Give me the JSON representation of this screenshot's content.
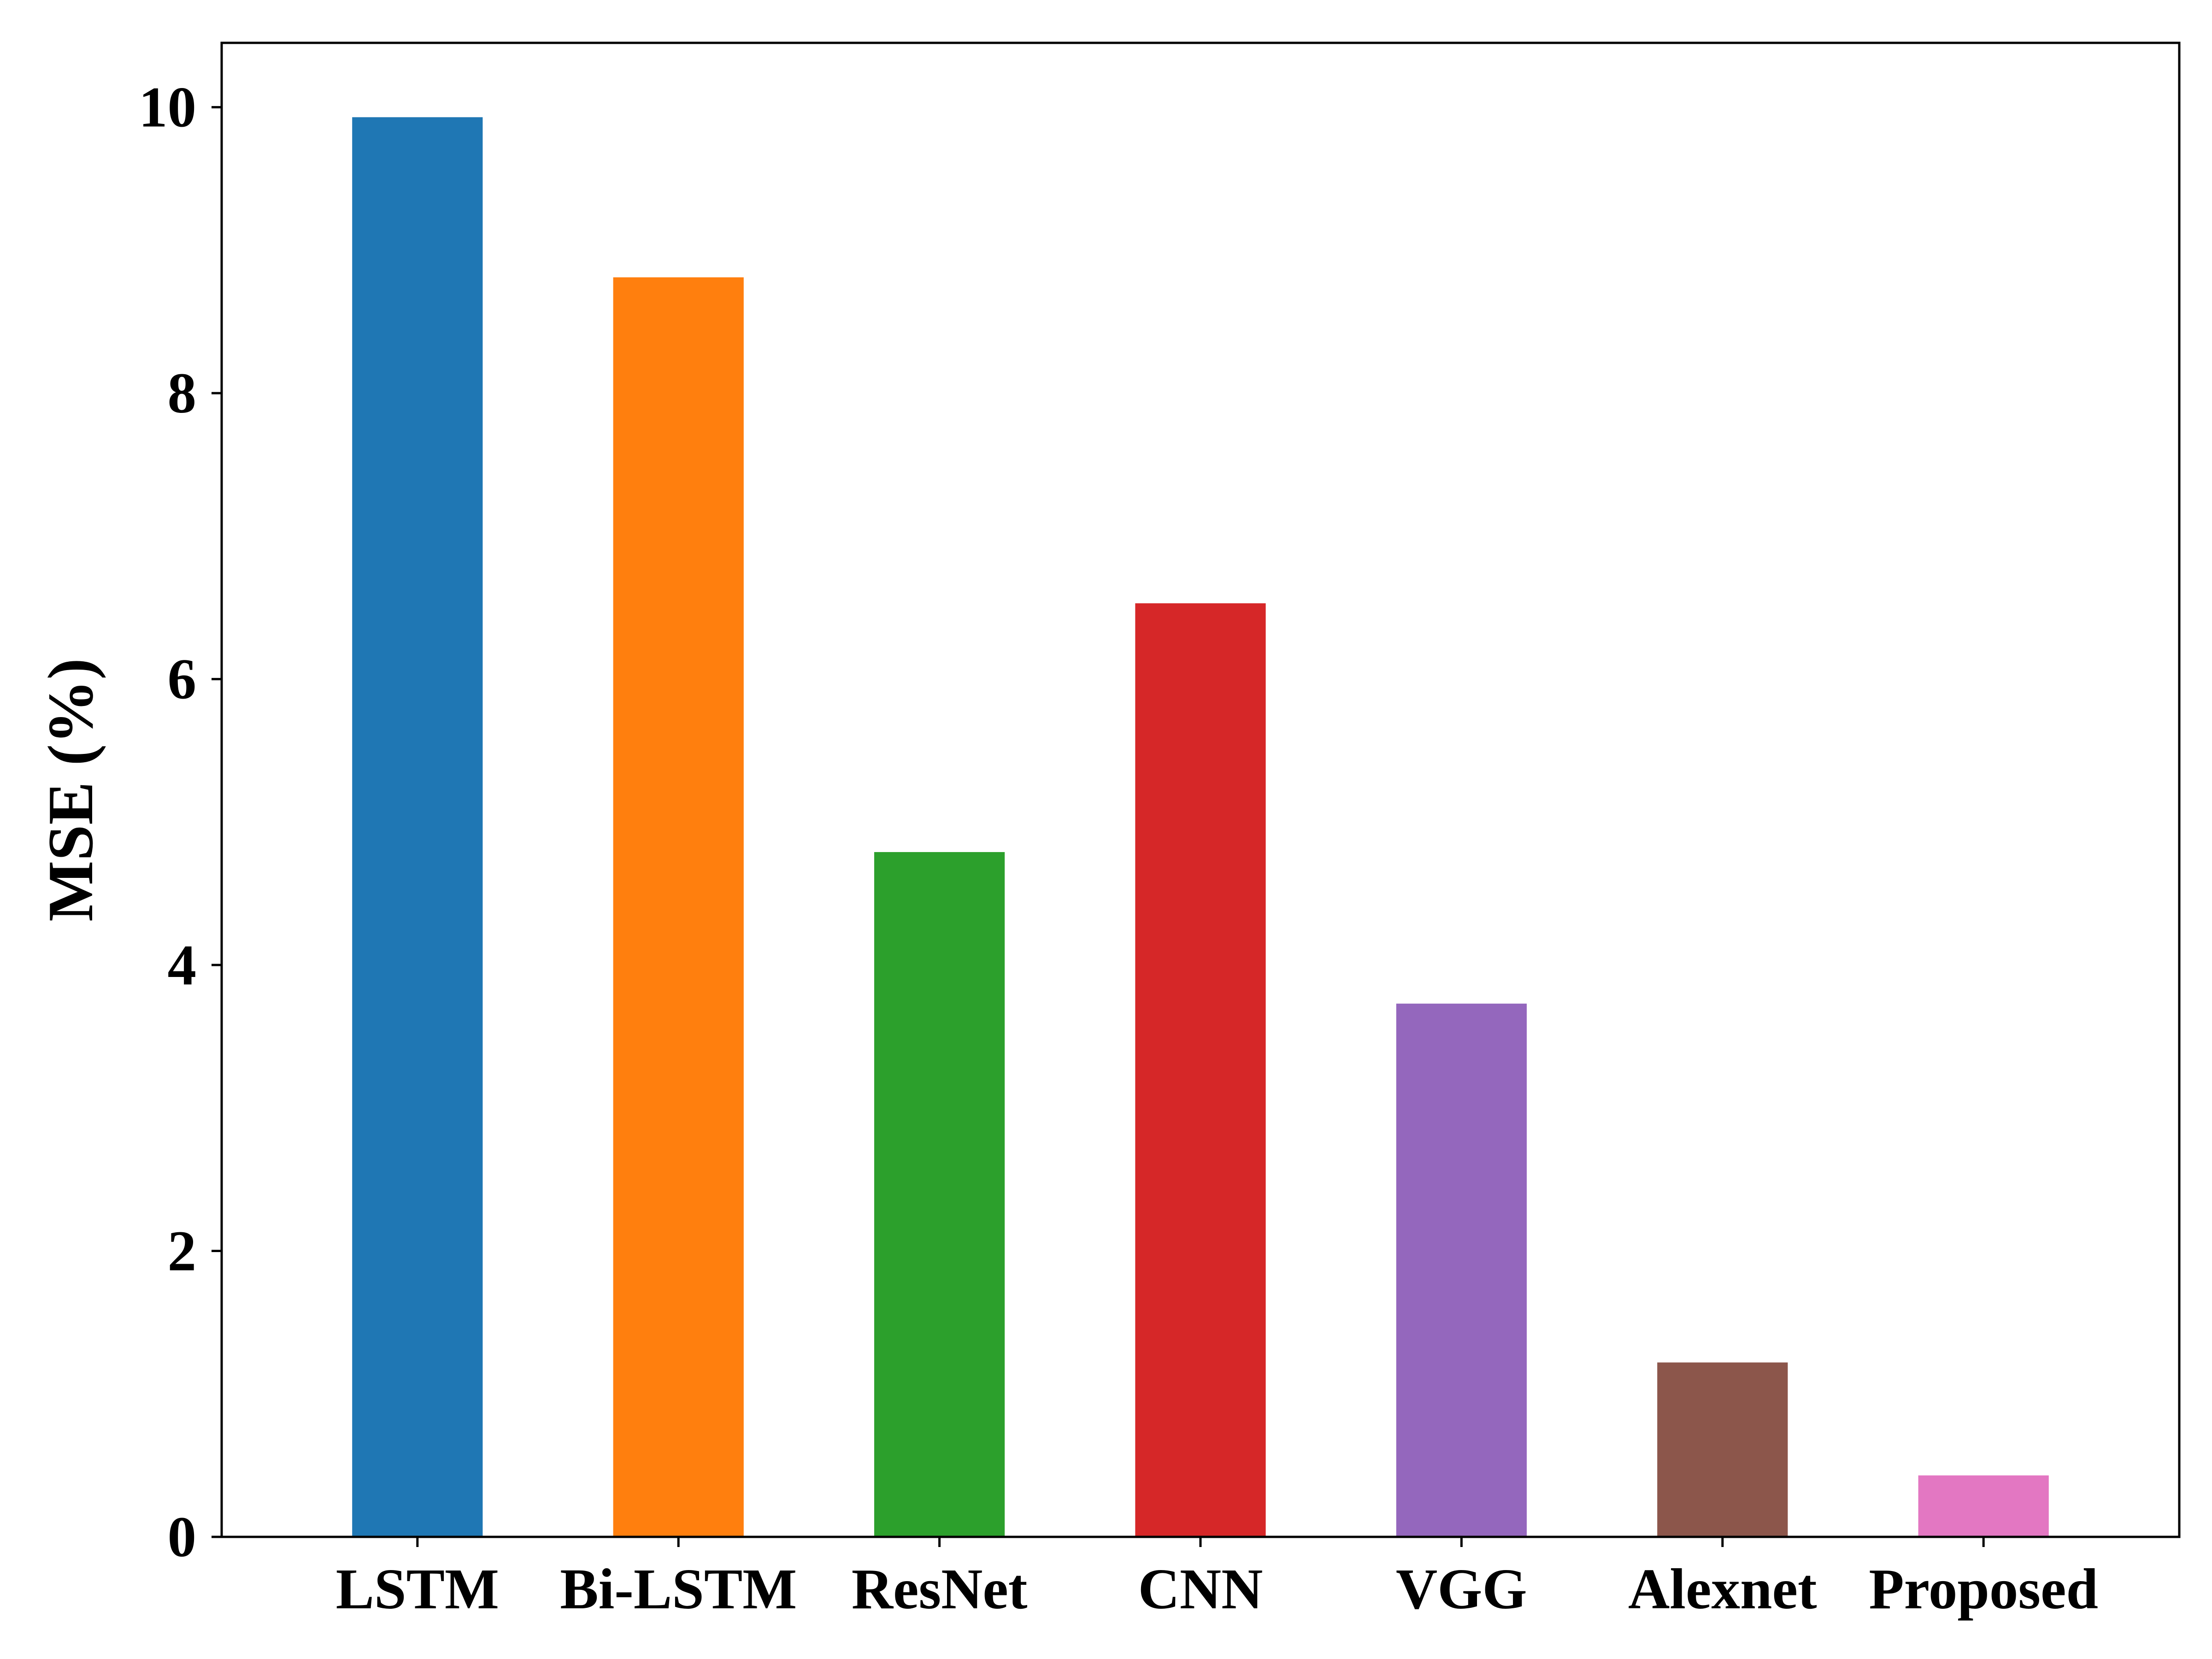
{
  "chart_data": {
    "type": "bar",
    "title": "",
    "xlabel": "",
    "ylabel": "MSE (%)",
    "categories": [
      "LSTM",
      "Bi-LSTM",
      "ResNet",
      "CNN",
      "VGG",
      "Alexnet",
      "Proposed"
    ],
    "values": [
      9.93,
      8.81,
      4.79,
      6.53,
      3.73,
      1.22,
      0.43
    ],
    "colors": [
      "#1f77b4",
      "#ff7f0e",
      "#2ca02c",
      "#d62728",
      "#9467bd",
      "#8c564b",
      "#e377c2"
    ],
    "ylim": [
      0,
      10.45
    ],
    "yticks": [
      0,
      2,
      4,
      6,
      8,
      10
    ],
    "ytick_labels": [
      "0",
      "2",
      "4",
      "6",
      "8",
      "10"
    ],
    "grid": false,
    "legend": "none"
  }
}
